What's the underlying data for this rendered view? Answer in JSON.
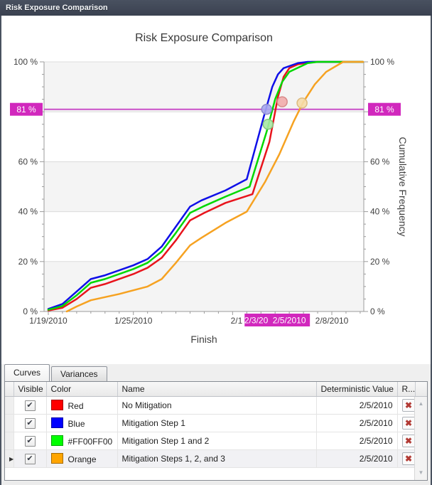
{
  "window": {
    "title": "Risk Exposure Comparison"
  },
  "tabs": [
    {
      "label": "Curves",
      "active": true
    },
    {
      "label": "Variances",
      "active": false
    }
  ],
  "chart_data": {
    "type": "line",
    "title": "Risk Exposure Comparison",
    "xlabel": "Finish",
    "ylabel": "Cumulative Frequency",
    "ylim": [
      0,
      100
    ],
    "y_tick_step_major": 20,
    "y_tick_step_minor": 5,
    "y_label_suffix": " %",
    "grid": true,
    "band_colors": [
      "#F4F4F4",
      "#FFFFFF"
    ],
    "x_ticks": [
      {
        "day": 0,
        "label": "1/19/2010",
        "highlight": false
      },
      {
        "day": 6,
        "label": "1/25/2010",
        "highlight": false
      },
      {
        "day": 13,
        "label": "2/1",
        "highlight": false
      },
      {
        "day": 15,
        "label": "2/3/2010",
        "highlight": true
      },
      {
        "day": 17,
        "label": "2/5/2010",
        "highlight": true
      },
      {
        "day": 20,
        "label": "2/8/2010",
        "highlight": false
      }
    ],
    "crossing": {
      "value": 81,
      "label": "81 %",
      "line_color": "#C94FC8",
      "box_color": "#D128BD",
      "text_color": "#FFFFFF"
    },
    "series": [
      {
        "name": "No Mitigation",
        "color": "#E8141C",
        "points": [
          [
            0,
            0.4
          ],
          [
            1,
            1.5
          ],
          [
            2,
            5
          ],
          [
            3,
            9.5
          ],
          [
            4,
            11
          ],
          [
            6,
            15
          ],
          [
            7,
            17.5
          ],
          [
            8,
            21.5
          ],
          [
            9,
            28.5
          ],
          [
            10,
            36.5
          ],
          [
            11,
            39.5
          ],
          [
            12.5,
            43.5
          ],
          [
            14.4,
            47
          ],
          [
            15.6,
            68
          ],
          [
            16.2,
            86
          ],
          [
            16.6,
            94
          ],
          [
            17,
            97.5
          ],
          [
            17.6,
            99
          ],
          [
            18.6,
            100
          ],
          [
            22.2,
            100
          ]
        ]
      },
      {
        "name": "Mitigation Step 1",
        "color": "#0F0FE8",
        "points": [
          [
            0,
            1
          ],
          [
            1,
            3
          ],
          [
            2,
            8
          ],
          [
            3,
            13
          ],
          [
            4,
            14.5
          ],
          [
            6,
            18.5
          ],
          [
            7,
            21
          ],
          [
            8,
            26
          ],
          [
            9,
            34
          ],
          [
            10,
            42
          ],
          [
            10.8,
            44.5
          ],
          [
            12.5,
            48.5
          ],
          [
            14,
            53
          ],
          [
            15.2,
            78
          ],
          [
            15.8,
            90
          ],
          [
            16.2,
            95
          ],
          [
            16.6,
            97.5
          ],
          [
            17.6,
            99.5
          ],
          [
            18.3,
            100
          ],
          [
            22.2,
            100
          ]
        ]
      },
      {
        "name": "Mitigation Step 1 and 2",
        "color": "#00D800",
        "points": [
          [
            0,
            0.7
          ],
          [
            1,
            2.2
          ],
          [
            2,
            6.5
          ],
          [
            3,
            11.5
          ],
          [
            4,
            13
          ],
          [
            6,
            17
          ],
          [
            7,
            19.5
          ],
          [
            8,
            24
          ],
          [
            9,
            31.5
          ],
          [
            10,
            39.5
          ],
          [
            10.9,
            42
          ],
          [
            12.5,
            46
          ],
          [
            14.2,
            50
          ],
          [
            15.4,
            72
          ],
          [
            16,
            85
          ],
          [
            16.5,
            92
          ],
          [
            17,
            96
          ],
          [
            18.3,
            99.5
          ],
          [
            19,
            100
          ],
          [
            22.2,
            100
          ]
        ]
      },
      {
        "name": "Mitigation Steps 1, 2, and 3",
        "color": "#F6A221",
        "points": [
          [
            1.3,
            0
          ],
          [
            2,
            2
          ],
          [
            3,
            4.5
          ],
          [
            5,
            7
          ],
          [
            7,
            10
          ],
          [
            8,
            13
          ],
          [
            9,
            19.5
          ],
          [
            10,
            26.5
          ],
          [
            10.8,
            29.5
          ],
          [
            12.5,
            35.5
          ],
          [
            14,
            40
          ],
          [
            15.3,
            52
          ],
          [
            16.3,
            63
          ],
          [
            17.3,
            76
          ],
          [
            18,
            84
          ],
          [
            18.8,
            91
          ],
          [
            19.6,
            96
          ],
          [
            20.8,
            100
          ],
          [
            22.2,
            100
          ]
        ]
      }
    ],
    "markers": [
      {
        "series": "Mitigation Step 1",
        "day": 15.4,
        "pct": 81,
        "fill": "#A9A9EE",
        "stroke": "#8A8ACC"
      },
      {
        "series": "Mitigation Step 1 and 2",
        "day": 15.5,
        "pct": 75,
        "fill": "#A8E8A4",
        "stroke": "#84C67E"
      },
      {
        "series": "No Mitigation",
        "day": 16.5,
        "pct": 84,
        "fill": "#F2ACAC",
        "stroke": "#D68A8A"
      },
      {
        "series": "Mitigation Steps 1, 2, and 3",
        "day": 17.9,
        "pct": 83.5,
        "fill": "#F6DCA9",
        "stroke": "#DDBA7E"
      }
    ]
  },
  "table": {
    "columns": [
      "Visible",
      "Color",
      "Name",
      "Deterministic Value",
      "R..."
    ],
    "rows": [
      {
        "visible": true,
        "color_label": "Red",
        "color_hex": "#FF0000",
        "name": "No Mitigation",
        "deterministic_value": "2/5/2010",
        "selected": false
      },
      {
        "visible": true,
        "color_label": "Blue",
        "color_hex": "#0000FF",
        "name": "Mitigation Step 1",
        "deterministic_value": "2/5/2010",
        "selected": false
      },
      {
        "visible": true,
        "color_label": "#FF00FF00",
        "color_hex": "#00FF00",
        "name": "Mitigation Step 1 and 2",
        "deterministic_value": "2/5/2010",
        "selected": false
      },
      {
        "visible": true,
        "color_label": "Orange",
        "color_hex": "#FFA500",
        "name": "Mitigation Steps 1, 2, and 3",
        "deterministic_value": "2/5/2010",
        "selected": true
      }
    ],
    "icons": {
      "checkbox_check": "✔",
      "delete_x": "✖",
      "row_marker": "▶",
      "scroll_up": "▲",
      "scroll_down": "▼"
    }
  }
}
